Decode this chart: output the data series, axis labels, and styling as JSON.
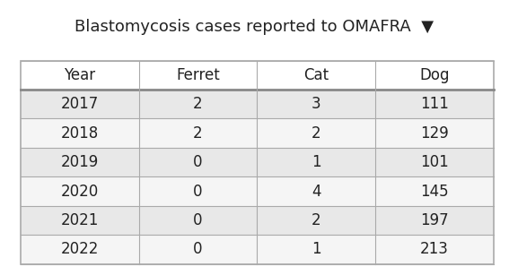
{
  "title": "Blastomycosis cases reported to OMAFRA",
  "title_fontsize": 13,
  "title_color": "#222222",
  "background_color": "#ffffff",
  "columns": [
    "Year",
    "Ferret",
    "Cat",
    "Dog"
  ],
  "rows": [
    [
      "2017",
      "2",
      "3",
      "111"
    ],
    [
      "2018",
      "2",
      "2",
      "129"
    ],
    [
      "2019",
      "0",
      "1",
      "101"
    ],
    [
      "2020",
      "0",
      "4",
      "145"
    ],
    [
      "2021",
      "0",
      "2",
      "197"
    ],
    [
      "2022",
      "0",
      "1",
      "213"
    ]
  ],
  "header_bg": "#ffffff",
  "row_bg_odd": "#e8e8e8",
  "row_bg_even": "#f5f5f5",
  "cell_text_color": "#222222",
  "header_text_color": "#222222",
  "cell_fontsize": 12,
  "header_fontsize": 12,
  "line_color": "#aaaaaa",
  "thick_line_color": "#888888"
}
